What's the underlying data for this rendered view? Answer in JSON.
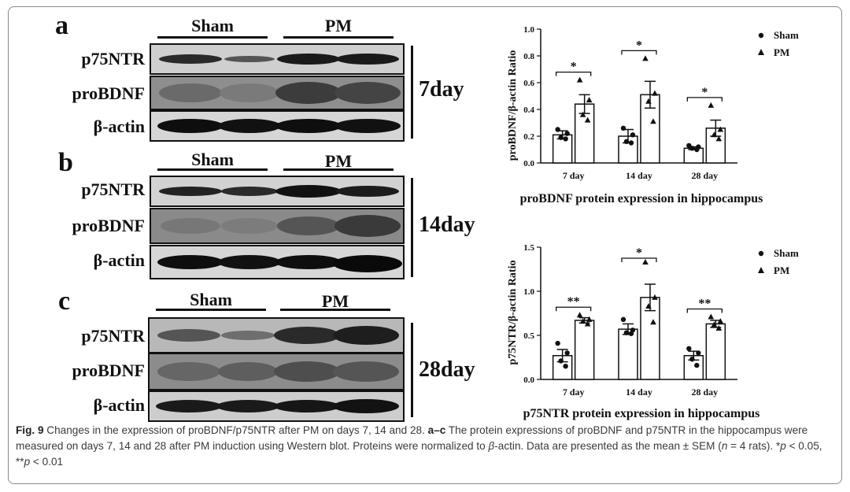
{
  "western_blot": {
    "panels": [
      {
        "letter": "a",
        "day_label": "7day",
        "sham_label": "Sham",
        "pm_label": "PM",
        "rows": [
          "p75NTR",
          "proBDNF",
          "β-actin"
        ]
      },
      {
        "letter": "b",
        "day_label": "14day",
        "sham_label": "Sham",
        "pm_label": "PM",
        "rows": [
          "p75NTR",
          "proBDNF",
          "β-actin"
        ]
      },
      {
        "letter": "c",
        "day_label": "28day",
        "sham_label": "Sham",
        "pm_label": "PM",
        "rows": [
          "p75NTR",
          "proBDNF",
          "β-actin"
        ]
      }
    ]
  },
  "chart_data": [
    {
      "type": "bar",
      "title": "proBDNF protein expression in hippocampus",
      "ylabel": "proBDNF/β-actin Ratio",
      "xlabel": "",
      "categories": [
        "7 day",
        "14 day",
        "28 day"
      ],
      "ylim": [
        0,
        1.0
      ],
      "yticks": [
        "0.0",
        "0.2",
        "0.4",
        "0.6",
        "0.8",
        "1.0"
      ],
      "legend": [
        "Sham",
        "PM"
      ],
      "legend_position": "top-right",
      "series": [
        {
          "name": "Sham",
          "marker": "circle",
          "values": [
            0.21,
            0.2,
            0.11
          ],
          "sem": [
            0.03,
            0.05,
            0.01
          ],
          "points": [
            [
              0.25,
              0.22,
              0.19,
              0.18
            ],
            [
              0.26,
              0.21,
              0.16,
              0.15
            ],
            [
              0.13,
              0.12,
              0.11,
              0.1
            ]
          ]
        },
        {
          "name": "PM",
          "marker": "triangle",
          "values": [
            0.44,
            0.51,
            0.26
          ],
          "sem": [
            0.07,
            0.1,
            0.06
          ],
          "points": [
            [
              0.62,
              0.47,
              0.36,
              0.32
            ],
            [
              0.78,
              0.52,
              0.46,
              0.31
            ],
            [
              0.43,
              0.25,
              0.21,
              0.18
            ]
          ]
        }
      ],
      "significance": [
        "*",
        "*",
        "*"
      ]
    },
    {
      "type": "bar",
      "title": "p75NTR protein expression in hippocampus",
      "ylabel": "p75NTR/β-actin Ratio",
      "xlabel": "",
      "categories": [
        "7 day",
        "14 day",
        "28 day"
      ],
      "ylim": [
        0,
        1.5
      ],
      "yticks": [
        "0.0",
        "0.5",
        "1.0",
        "1.5"
      ],
      "legend": [
        "Sham",
        "PM"
      ],
      "legend_position": "top-right",
      "series": [
        {
          "name": "Sham",
          "marker": "circle",
          "values": [
            0.27,
            0.57,
            0.27
          ],
          "sem": [
            0.07,
            0.06,
            0.05
          ],
          "points": [
            [
              0.41,
              0.3,
              0.21,
              0.15
            ],
            [
              0.68,
              0.56,
              0.53,
              0.52
            ],
            [
              0.35,
              0.3,
              0.23,
              0.16
            ]
          ]
        },
        {
          "name": "PM",
          "marker": "triangle",
          "values": [
            0.67,
            0.93,
            0.63
          ],
          "sem": [
            0.03,
            0.15,
            0.04
          ],
          "points": [
            [
              0.73,
              0.68,
              0.66,
              0.63
            ],
            [
              1.33,
              0.93,
              0.83,
              0.65
            ],
            [
              0.71,
              0.66,
              0.62,
              0.58
            ]
          ]
        }
      ],
      "significance": [
        "**",
        "*",
        "**"
      ]
    }
  ],
  "caption": {
    "fig_label": "Fig. 9",
    "text_1": "Changes in the expression of proBDNF/p75NTR after PM on days 7, 14 and 28.",
    "panel_ref": "a–c",
    "text_2": "The protein expressions of proBDNF and p75NTR in the hippocampus were measured on days 7, 14 and 28 after PM induction using Western blot. Proteins were normalized to",
    "beta": "β",
    "text_3": "-actin. Data are presented as the mean ± SEM (",
    "n_italic": "n",
    "text_4": " = 4 rats). *",
    "p1": "p",
    "text_5": " < 0.05, **",
    "p2": "p",
    "text_6": " < 0.01"
  }
}
